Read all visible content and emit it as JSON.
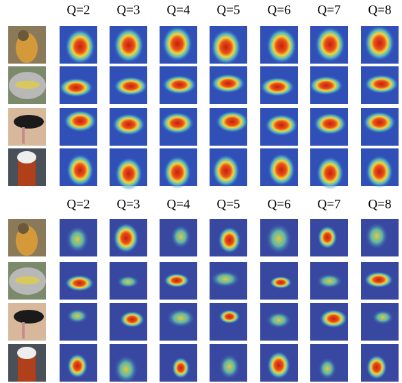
{
  "panels": [
    {
      "column_labels": [
        "Q=2",
        "Q=3",
        "Q=4",
        "Q=5",
        "Q=6",
        "Q=7",
        "Q=8"
      ]
    },
    {
      "column_labels": [
        "Q=2",
        "Q=3",
        "Q=4",
        "Q=5",
        "Q=6",
        "Q=7",
        "Q=8"
      ]
    }
  ]
}
